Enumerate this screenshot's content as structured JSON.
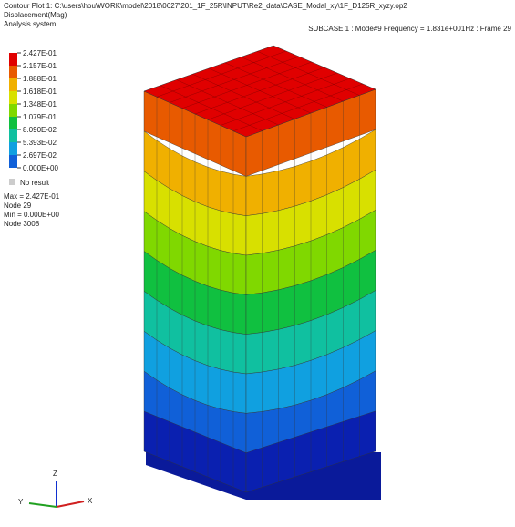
{
  "header": {
    "line1": "Contour Plot   1: C:\\users\\hou\\WORK\\model\\2018\\0627\\201_1F_25R\\INPUT\\Re2_data\\CASE_Modal_xy\\1F_D125R_xyzy.op2",
    "line2": "Displacement(Mag)",
    "line3": "Analysis system",
    "subcase": "SUBCASE 1 : Mode#9 Frequency = 1.831e+001Hz : Frame 29"
  },
  "legend": {
    "labels": [
      "2.427E-01",
      "2.157E-01",
      "1.888E-01",
      "1.618E-01",
      "1.348E-01",
      "1.079E-01",
      "8.090E-02",
      "5.393E-02",
      "2.697E-02",
      "0.000E+00"
    ],
    "no_result": "No result",
    "max": "Max = 2.427E-01",
    "max_node": "Node 29",
    "min": "Min = 0.000E+00",
    "min_node": "Node 3008"
  },
  "triad": {
    "z": "Z",
    "y": "Y",
    "x": "X"
  }
}
